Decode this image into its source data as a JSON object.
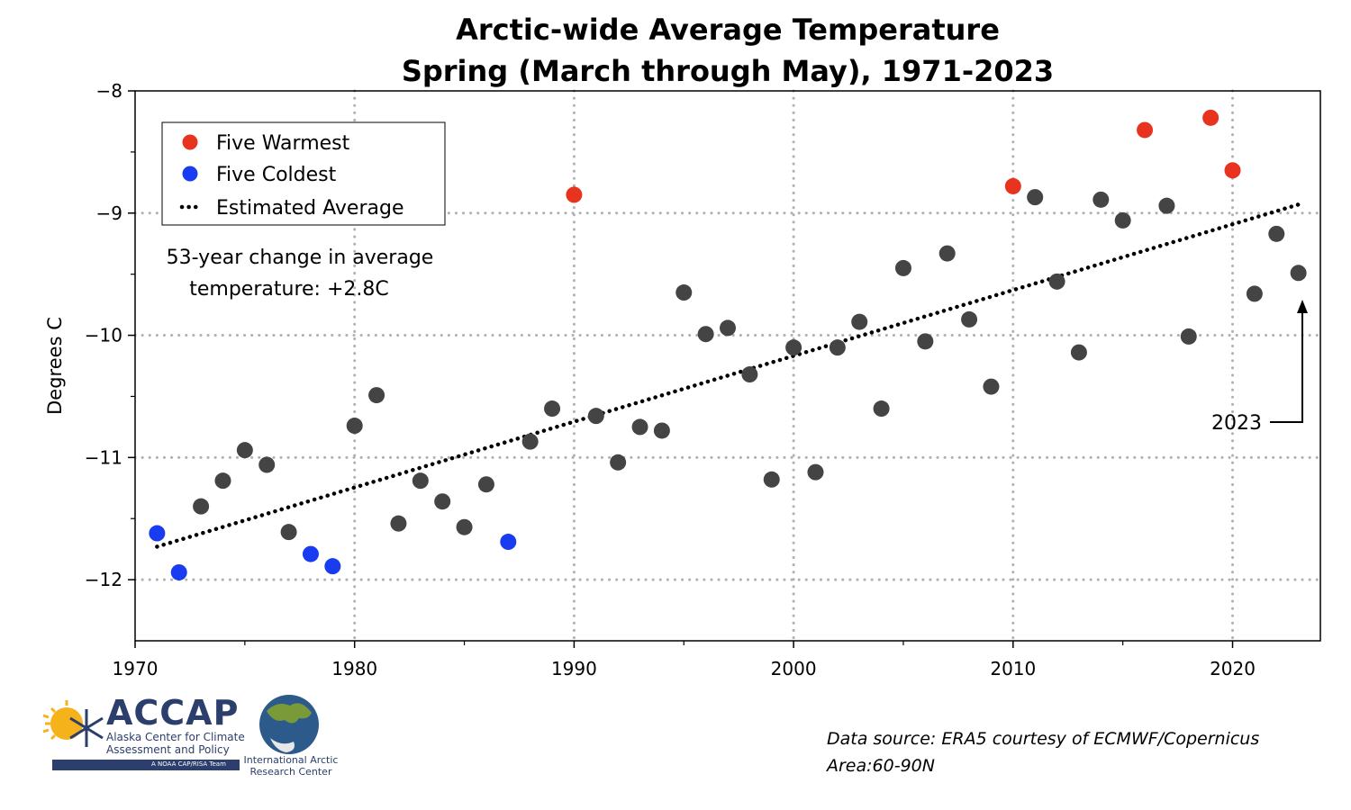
{
  "title_line1": "Arctic-wide Average Temperature",
  "title_line2": "Spring (March through May), 1971-2023",
  "colors": {
    "warm": "#e8341f",
    "cold": "#1a3cf0",
    "normal": "#444444",
    "grid": "#b0b0b0"
  },
  "legend": {
    "warmest": "Five Warmest",
    "coldest": "Five Coldest",
    "trend": "Estimated Average"
  },
  "annotation": {
    "line1": "53-year change in average",
    "line2": "temperature: +2.8C",
    "year_label": "2023"
  },
  "source": {
    "line1": "Data source: ERA5 courtesy of ECMWF/Copernicus",
    "line2": "Area:60-90N"
  },
  "logos": {
    "accap": "ACCAP",
    "accap_sub": "Alaska Center for Climate Assessment and Policy",
    "accap_bar": "A NOAA CAP/RISA Team",
    "iarc": "International Arctic Research Center"
  },
  "chart_data": {
    "type": "scatter",
    "title": "Arctic-wide Average Temperature Spring (March through May), 1971-2023",
    "xlabel": "",
    "ylabel": "Degrees C",
    "xlim": [
      1970,
      2024
    ],
    "ylim": [
      -12.5,
      -8
    ],
    "xticks": [
      1970,
      1980,
      1990,
      2000,
      2010,
      2020
    ],
    "yticks": [
      -8,
      -9,
      -10,
      -11,
      -12
    ],
    "ytick_labels": [
      "−8",
      "−9",
      "−10",
      "−11",
      "−12"
    ],
    "grid": true,
    "legend_position": "top-left",
    "x": [
      1971,
      1972,
      1973,
      1974,
      1975,
      1976,
      1977,
      1978,
      1979,
      1980,
      1981,
      1982,
      1983,
      1984,
      1985,
      1986,
      1987,
      1988,
      1989,
      1990,
      1991,
      1992,
      1993,
      1994,
      1995,
      1996,
      1997,
      1998,
      1999,
      2000,
      2001,
      2002,
      2003,
      2004,
      2005,
      2006,
      2007,
      2008,
      2009,
      2010,
      2011,
      2012,
      2013,
      2014,
      2015,
      2016,
      2017,
      2018,
      2019,
      2020,
      2021,
      2022,
      2023
    ],
    "y": [
      -11.62,
      -11.94,
      -11.4,
      -11.19,
      -10.94,
      -11.06,
      -11.61,
      -11.79,
      -11.89,
      -10.74,
      -10.49,
      -11.54,
      -11.19,
      -11.36,
      -11.57,
      -11.22,
      -11.69,
      -10.87,
      -10.6,
      -8.85,
      -10.66,
      -11.04,
      -10.75,
      -10.78,
      -9.65,
      -9.99,
      -9.94,
      -10.32,
      -11.18,
      -10.1,
      -11.12,
      -10.1,
      -9.89,
      -10.6,
      -9.45,
      -10.05,
      -9.33,
      -9.87,
      -10.42,
      -8.78,
      -8.87,
      -9.56,
      -10.14,
      -8.89,
      -9.06,
      -8.32,
      -8.94,
      -10.01,
      -8.22,
      -8.65,
      -9.66,
      -9.17,
      -9.49
    ],
    "category": [
      "cold",
      "cold",
      "normal",
      "normal",
      "normal",
      "normal",
      "normal",
      "cold",
      "cold",
      "normal",
      "normal",
      "normal",
      "normal",
      "normal",
      "normal",
      "normal",
      "cold",
      "normal",
      "normal",
      "warm",
      "normal",
      "normal",
      "normal",
      "normal",
      "normal",
      "normal",
      "normal",
      "normal",
      "normal",
      "normal",
      "normal",
      "normal",
      "normal",
      "normal",
      "normal",
      "normal",
      "normal",
      "normal",
      "normal",
      "warm",
      "normal",
      "normal",
      "normal",
      "normal",
      "normal",
      "warm",
      "normal",
      "normal",
      "warm",
      "warm",
      "normal",
      "normal",
      "normal"
    ],
    "trend": {
      "x": [
        1971,
        2023
      ],
      "y": [
        -11.73,
        -8.93
      ]
    }
  }
}
